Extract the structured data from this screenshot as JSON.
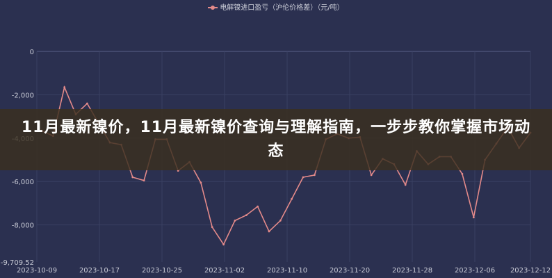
{
  "chart_data": {
    "type": "line",
    "legend": "电解镍进口盈亏（沪伦价格差）（元/吨）",
    "legend_placement": "top",
    "series": [
      {
        "name": "电解镍进口盈亏（沪伦价格差）（元/吨）",
        "color": "#e48a8a",
        "values": [
          -3650,
          -3900,
          -1650,
          -2900,
          -2400,
          -3300,
          -4200,
          -4300,
          -5800,
          -5950,
          -4050,
          -4050,
          -5500,
          -5100,
          -6050,
          -8100,
          -8900,
          -7800,
          -7550,
          -7150,
          -8300,
          -7800,
          -6800,
          -5800,
          -5700,
          -4050,
          -3800,
          -4000,
          -3950,
          -5700,
          -4950,
          -5200,
          -6150,
          -4600,
          -5200,
          -4850,
          -4850,
          -5650,
          -7650,
          -5000,
          -4250,
          -3500,
          -4450,
          -3750
        ]
      }
    ],
    "x_tick_labels": [
      "2023-10-09",
      "2023-10-17",
      "2023-10-25",
      "2023-11-02",
      "2023-11-10",
      "2023-11-20",
      "2023-11-28",
      "2023-12-06",
      "2023-12-12"
    ],
    "y_ticks": [
      0,
      -2000,
      -4000,
      -6000,
      -8000,
      -9709.52
    ],
    "y_tick_labels": [
      "0",
      "-2,000",
      "-4,000",
      "-6,000",
      "-8,000",
      "-9,709.52"
    ],
    "ylim": [
      -9709.52,
      0
    ],
    "grid": true
  },
  "banner": {
    "title": "11月最新镍价，11月最新镍价查询与理解指南，一步步教你掌握市场动态"
  },
  "colors": {
    "background": "#2b3050",
    "line": "#e48a8a",
    "grid": "#3a4062"
  }
}
